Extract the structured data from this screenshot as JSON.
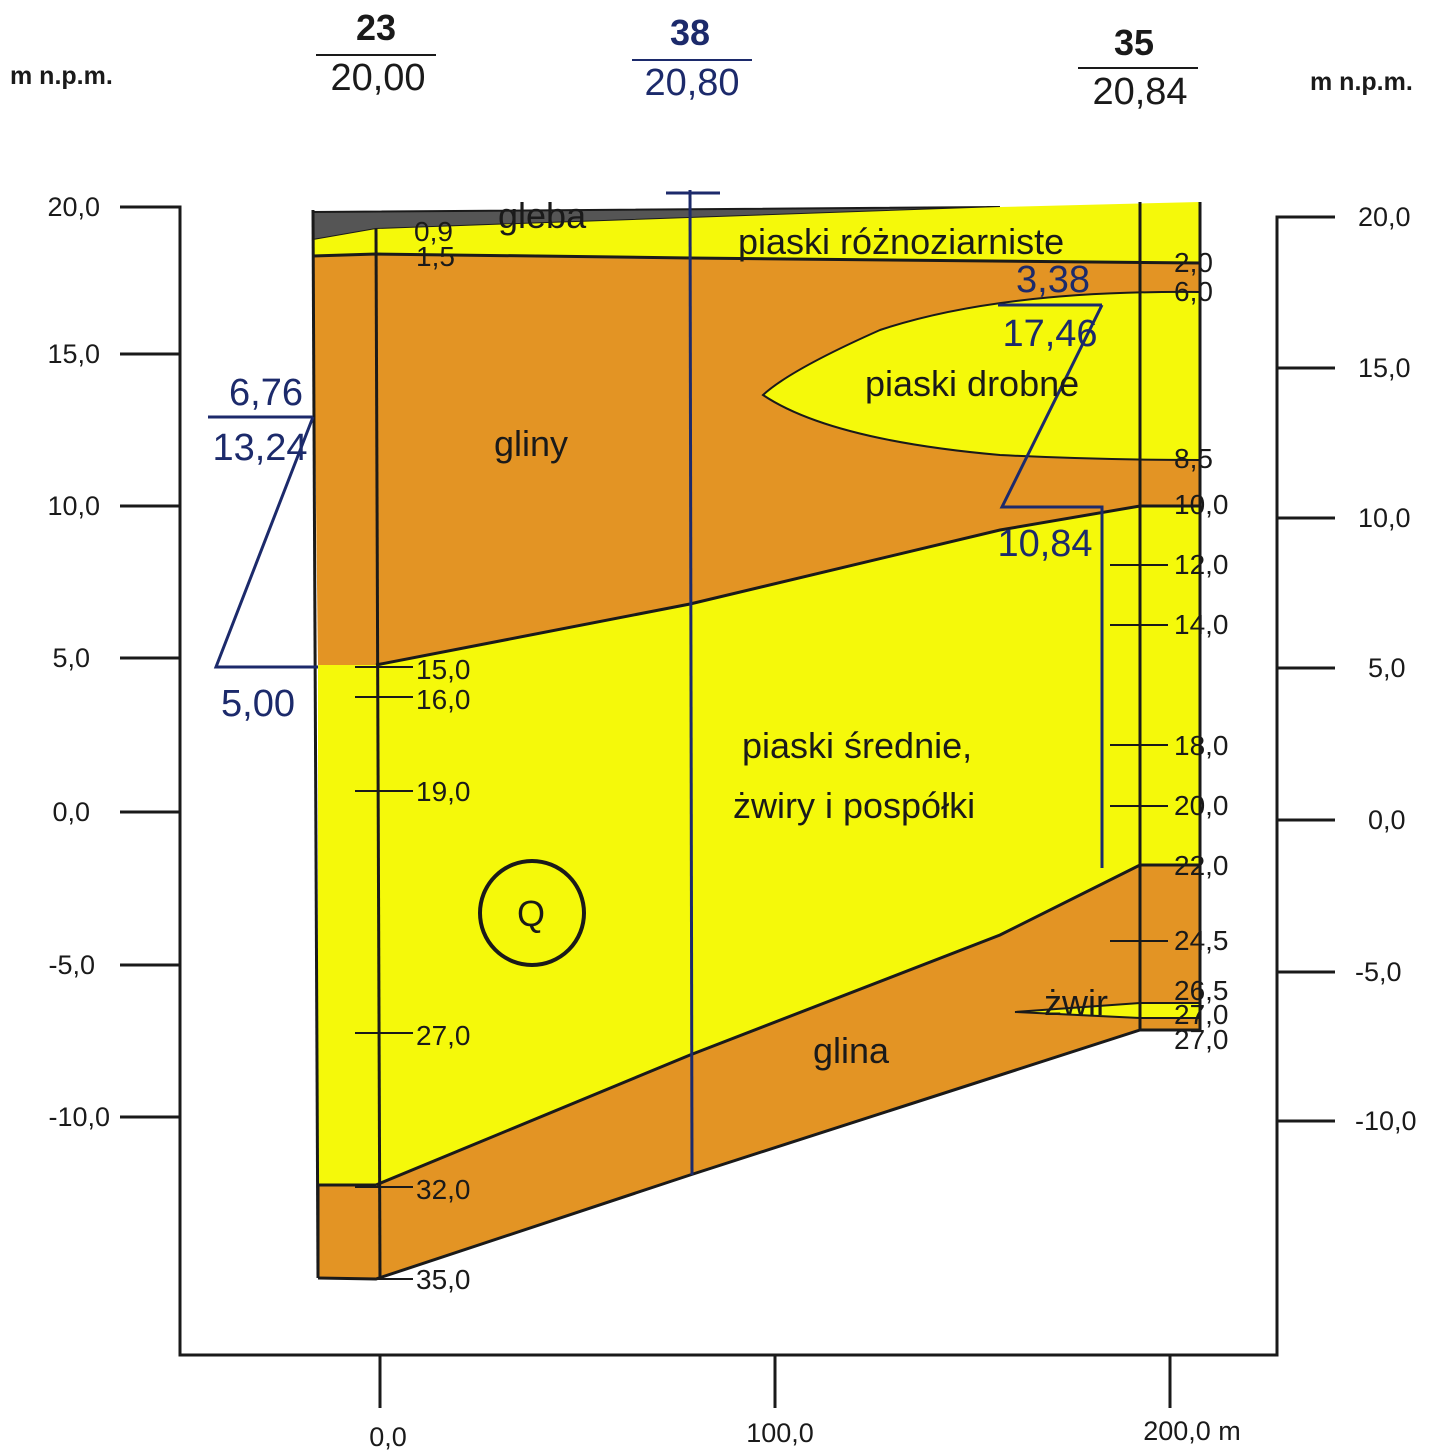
{
  "units": {
    "left": "m n.p.m.",
    "right": "m n.p.m."
  },
  "y_axis_ticks": [
    "20,0",
    "15,0",
    "10,0",
    "5,0",
    "0,0",
    "-5,0",
    "-10,0"
  ],
  "x_axis_ticks": [
    "0,0",
    "100,0",
    "200,0 m"
  ],
  "boreholes": [
    {
      "number": "23",
      "elevation": "20,00"
    },
    {
      "number": "38",
      "elevation": "20,80"
    },
    {
      "number": "35",
      "elevation": "20,84"
    }
  ],
  "layers": {
    "gleba": "gleba",
    "piaski_rozno": "piaski różnoziarniste",
    "piaski_drobne": "piaski drobne",
    "gliny": "gliny",
    "piaski_srednie_1": "piaski średnie,",
    "piaski_srednie_2": "żwiry i pospółki",
    "glina": "glina",
    "zwir": "żwir",
    "stratigraphy": "Q"
  },
  "depths_left": [
    "0,9",
    "1,5",
    "15,0",
    "16,0",
    "19,0",
    "27,0",
    "32,0",
    "35,0"
  ],
  "depths_right": [
    "2,0",
    "6,0",
    "8,5",
    "10,0",
    "12,0",
    "14,0",
    "18,0",
    "20,0",
    "22,0",
    "24,5",
    "26,5",
    "27,0",
    "27,0"
  ],
  "water_levels": {
    "left": {
      "depth": "6,76",
      "elev": "13,24",
      "bottom": "5,00"
    },
    "right": {
      "depth": "3,38",
      "elev": "17,46",
      "bottom": "10,84"
    }
  },
  "colors": {
    "sand": "#f5f90a",
    "clay": "#e39424",
    "soil": "#555555",
    "water_line": "#1c2a6b"
  }
}
